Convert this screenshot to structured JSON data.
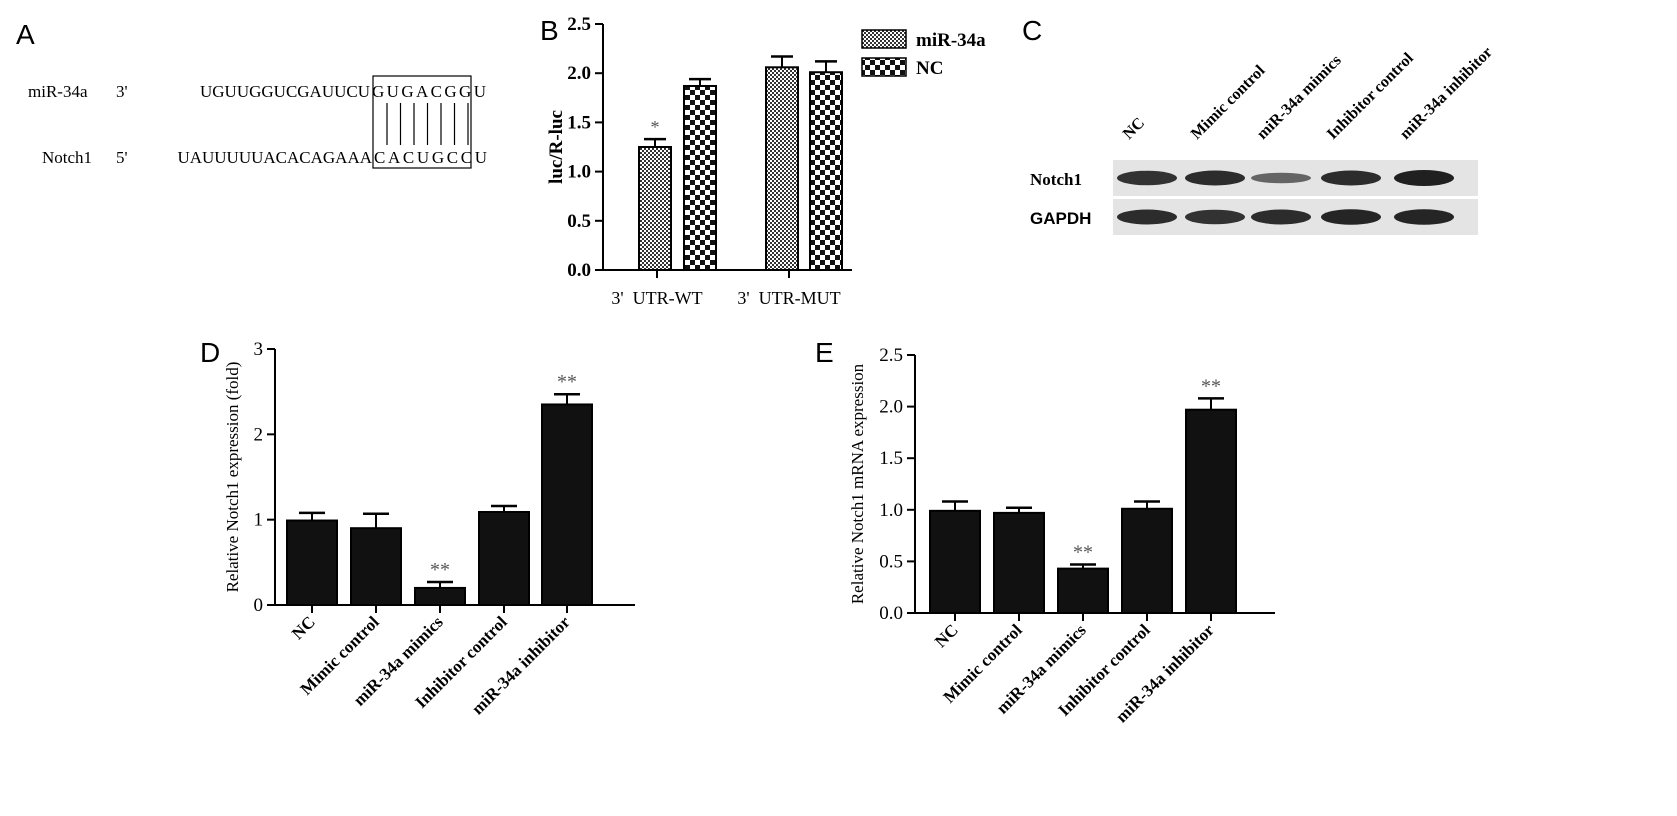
{
  "colors": {
    "bar_dark": "#111111",
    "axis": "#000000",
    "asterisk": "#555555",
    "blot_bg": "#e4e4e4",
    "band": "#151515"
  },
  "panels": {
    "A": {
      "letter": "A",
      "mir_label": "miR-34a",
      "mir_end": "3'",
      "mir_seq_unpaired": "UGUUGGUCGAUUCU",
      "mir_seq_paired": "GUGACGGU",
      "gene_label": "Notch1",
      "gene_end": "5'",
      "gene_seq_unpaired": "UAUUUUUACACAGAAA",
      "gene_seq_paired": "CACUGCCU"
    },
    "B": {
      "letter": "B"
    },
    "C": {
      "letter": "C",
      "lanes": [
        "NC",
        "Mimic control",
        "miR-34a mimics",
        "Inhibitor control",
        "miR-34a inhibitor"
      ],
      "rows": [
        {
          "label": "Notch1",
          "intensity": [
            0.85,
            0.9,
            0.45,
            0.9,
            1.0
          ]
        },
        {
          "label": "GAPDH",
          "intensity": [
            0.9,
            0.85,
            0.9,
            0.95,
            0.95
          ]
        }
      ]
    },
    "D": {
      "letter": "D"
    },
    "E": {
      "letter": "E"
    }
  },
  "chart_data": [
    {
      "panel": "B",
      "type": "bar",
      "categories": [
        "3'  UTR-WT",
        "3'  UTR-MUT"
      ],
      "series": [
        {
          "name": "miR-34a",
          "values": [
            1.25,
            2.06
          ],
          "errors": [
            0.08,
            0.11
          ],
          "pattern": "dense-checker"
        },
        {
          "name": "NC",
          "values": [
            1.87,
            2.01
          ],
          "errors": [
            0.07,
            0.11
          ],
          "pattern": "coarse-checker"
        }
      ],
      "annotations": [
        "*",
        "",
        "",
        ""
      ],
      "ylabel": "luc/R-luc",
      "ylim": [
        0,
        2.5
      ],
      "yticks": [
        "0.0",
        "0.5",
        "1.0",
        "1.5",
        "2.0",
        "2.5"
      ],
      "legend_position": "top-right"
    },
    {
      "panel": "D",
      "type": "bar",
      "categories": [
        "NC",
        "Mimic control",
        "miR-34a mimics",
        "Inhibitor control",
        "miR-34a inhibitor"
      ],
      "values": [
        0.99,
        0.9,
        0.2,
        1.09,
        2.35
      ],
      "errors": [
        0.09,
        0.17,
        0.07,
        0.07,
        0.12
      ],
      "annotations": [
        "",
        "",
        "**",
        "",
        "**"
      ],
      "ylabel": "Relative Notch1 expression (fold)",
      "ylim": [
        0,
        3
      ],
      "yticks": [
        "0",
        "1",
        "2",
        "3"
      ]
    },
    {
      "panel": "E",
      "type": "bar",
      "categories": [
        "NC",
        "Mimic control",
        "miR-34a mimics",
        "Inhibitor control",
        "miR-34a inhibitor"
      ],
      "values": [
        0.99,
        0.97,
        0.43,
        1.01,
        1.97
      ],
      "errors": [
        0.09,
        0.05,
        0.04,
        0.07,
        0.11
      ],
      "annotations": [
        "",
        "",
        "**",
        "",
        "**"
      ],
      "ylabel": "Relative Notch1 mRNA expression",
      "ylim": [
        0,
        2.5
      ],
      "yticks": [
        "0.0",
        "0.5",
        "1.0",
        "1.5",
        "2.0",
        "2.5"
      ]
    }
  ]
}
